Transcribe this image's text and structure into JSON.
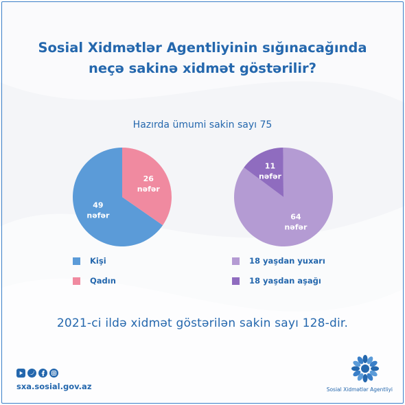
{
  "header": {
    "title_line1": "Sosial Xidmətlər Agentliyinin sığınacağında",
    "title_line2": "neçə sakinə xidmət göstərilir?",
    "subtitle": "Hazırda ümumi sakin sayı 75"
  },
  "chart_data": [
    {
      "type": "pie",
      "categories": [
        "Kişi",
        "Qadın"
      ],
      "values": [
        49,
        26
      ],
      "slice_labels": [
        {
          "number": "49",
          "unit": "nəfər"
        },
        {
          "number": "26",
          "unit": "nəfər"
        }
      ],
      "colors": [
        "#5b9bd8",
        "#f08aa0"
      ],
      "legend_position": "bottom"
    },
    {
      "type": "pie",
      "categories": [
        "18 yaşdan yuxarı",
        "18 yaşdan aşağı"
      ],
      "values": [
        64,
        11
      ],
      "slice_labels": [
        {
          "number": "64",
          "unit": "nəfər"
        },
        {
          "number": "11",
          "unit": "nəfər"
        }
      ],
      "colors": [
        "#b49bd3",
        "#8f6cbf"
      ],
      "legend_position": "bottom"
    }
  ],
  "legend_left": [
    {
      "label": "Kişi",
      "color": "#5b9bd8"
    },
    {
      "label": "Qadın",
      "color": "#f08aa0"
    }
  ],
  "legend_right": [
    {
      "label": "18 yaşdan yuxarı",
      "color": "#b49bd3"
    },
    {
      "label": "18 yaşdan aşağı",
      "color": "#8f6cbf"
    }
  ],
  "footer": {
    "note": "2021-ci ildə xidmət göstərilən sakin sayı 128-dir.",
    "website": "sxa.sosial.gov.az",
    "agency_name": "Sosial Xidmətlər Agentliyi",
    "social_icons": [
      "youtube-icon",
      "twitter-icon",
      "facebook-icon",
      "instagram-icon"
    ]
  }
}
